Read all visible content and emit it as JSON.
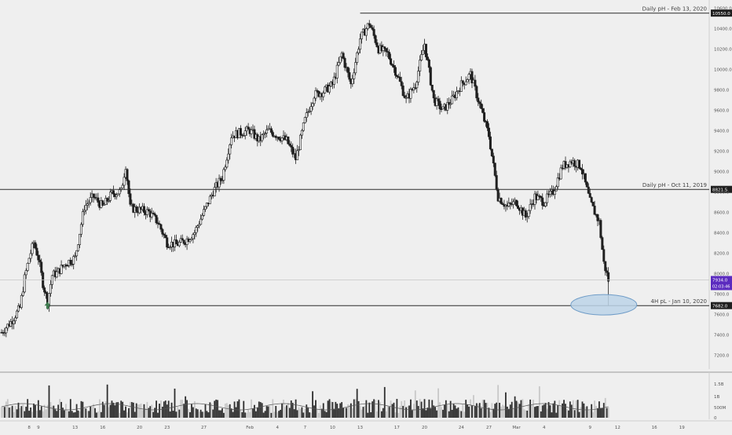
{
  "chart_data": {
    "type": "candlestick",
    "instrument_note": "",
    "colors": {
      "background": "#efefef",
      "candle": "#1f1f1f",
      "level_line": "#2b2b2b",
      "ellipse_fill": "#bcd3e8",
      "ellipse_stroke": "#6f9cc7",
      "arrow": "#3f7a4f",
      "current_price_badge": "#5b2bbf",
      "volume_bar": "#2e2e2e",
      "volume_bar_muted": "#c8c8c8",
      "volume_ma": "#555555"
    },
    "price_axis": {
      "ylim": [
        7060,
        10640
      ],
      "ticks": [
        "10600.0",
        "10400.0",
        "10200.0",
        "10000.0",
        "9800.0",
        "9600.0",
        "9400.0",
        "9200.0",
        "9000.0",
        "8800.0",
        "8600.0",
        "8400.0",
        "8200.0",
        "8000.0",
        "7800.0",
        "7600.0",
        "7400.0",
        "7200.0"
      ],
      "tick_values": [
        10600,
        10400,
        10200,
        10000,
        9800,
        9600,
        9400,
        9200,
        9000,
        8800,
        8600,
        8400,
        8200,
        8000,
        7800,
        7600,
        7400,
        7200
      ]
    },
    "time_axis": {
      "labels": [
        "8",
        "9",
        "13",
        "16",
        "20",
        "23",
        "27",
        "Feb",
        "4",
        "7",
        "10",
        "13",
        "17",
        "20",
        "24",
        "27",
        "Mar",
        "4",
        "9",
        "12",
        "16",
        "19"
      ],
      "positions": [
        8,
        9,
        13,
        16,
        20,
        23,
        27,
        32,
        35,
        38,
        41,
        44,
        48,
        51,
        55,
        58,
        61,
        64,
        69,
        72,
        76,
        79
      ]
    },
    "levels": [
      {
        "label": "Daily pH - Feb 13, 2020",
        "price": 10550,
        "badge": "10550.0",
        "from_x": 44
      },
      {
        "label": "Daily pH - Oct 11, 2019",
        "price": 8821.5,
        "badge": "8821.5",
        "from_x": 0
      },
      {
        "label": "4H pL - Jan 10, 2020",
        "price": 7682,
        "badge": "7682.0",
        "from_x": 10
      }
    ],
    "current_price": {
      "value": 7934,
      "badge": "7934.0",
      "countdown": "02:03:46"
    },
    "closes": [
      [
        5.0,
        7420
      ],
      [
        6.0,
        7520
      ],
      [
        7.0,
        7660
      ],
      [
        7.5,
        7950
      ],
      [
        8.0,
        8150
      ],
      [
        8.5,
        8300
      ],
      [
        9.0,
        8150
      ],
      [
        9.5,
        7900
      ],
      [
        10.0,
        7720
      ],
      [
        10.5,
        7980
      ],
      [
        11.0,
        8000
      ],
      [
        12.0,
        8100
      ],
      [
        13.0,
        8150
      ],
      [
        14.0,
        8650
      ],
      [
        15.0,
        8750
      ],
      [
        16.0,
        8650
      ],
      [
        17.0,
        8780
      ],
      [
        18.0,
        8800
      ],
      [
        18.5,
        9060
      ],
      [
        19.0,
        8640
      ],
      [
        20.0,
        8620
      ],
      [
        21.0,
        8600
      ],
      [
        22.0,
        8500
      ],
      [
        23.0,
        8300
      ],
      [
        24.0,
        8280
      ],
      [
        25.0,
        8320
      ],
      [
        26.0,
        8400
      ],
      [
        27.0,
        8600
      ],
      [
        28.0,
        8800
      ],
      [
        29.0,
        8940
      ],
      [
        30.0,
        9350
      ],
      [
        31.0,
        9380
      ],
      [
        32.0,
        9400
      ],
      [
        33.0,
        9300
      ],
      [
        34.0,
        9400
      ],
      [
        35.0,
        9350
      ],
      [
        36.0,
        9300
      ],
      [
        37.0,
        9120
      ],
      [
        38.0,
        9500
      ],
      [
        39.0,
        9750
      ],
      [
        40.0,
        9780
      ],
      [
        41.0,
        9850
      ],
      [
        42.0,
        10150
      ],
      [
        43.0,
        9850
      ],
      [
        44.0,
        10300
      ],
      [
        45.0,
        10450
      ],
      [
        46.0,
        10200
      ],
      [
        47.0,
        10150
      ],
      [
        48.0,
        9950
      ],
      [
        49.0,
        9700
      ],
      [
        50.0,
        9850
      ],
      [
        51.0,
        10250
      ],
      [
        52.0,
        9700
      ],
      [
        53.0,
        9600
      ],
      [
        54.0,
        9700
      ],
      [
        55.0,
        9850
      ],
      [
        56.0,
        9950
      ],
      [
        57.0,
        9650
      ],
      [
        58.0,
        9350
      ],
      [
        59.0,
        8750
      ],
      [
        60.0,
        8650
      ],
      [
        61.0,
        8700
      ],
      [
        62.0,
        8550
      ],
      [
        63.0,
        8750
      ],
      [
        64.0,
        8700
      ],
      [
        65.0,
        8800
      ],
      [
        66.0,
        9050
      ],
      [
        67.0,
        9100
      ],
      [
        68.0,
        9050
      ],
      [
        69.0,
        8700
      ],
      [
        70.0,
        8500
      ],
      [
        70.5,
        8100
      ],
      [
        71.0,
        7934
      ]
    ],
    "volume_axis": {
      "ticks": [
        "1.5B",
        "1B",
        "500M",
        "0"
      ]
    }
  }
}
